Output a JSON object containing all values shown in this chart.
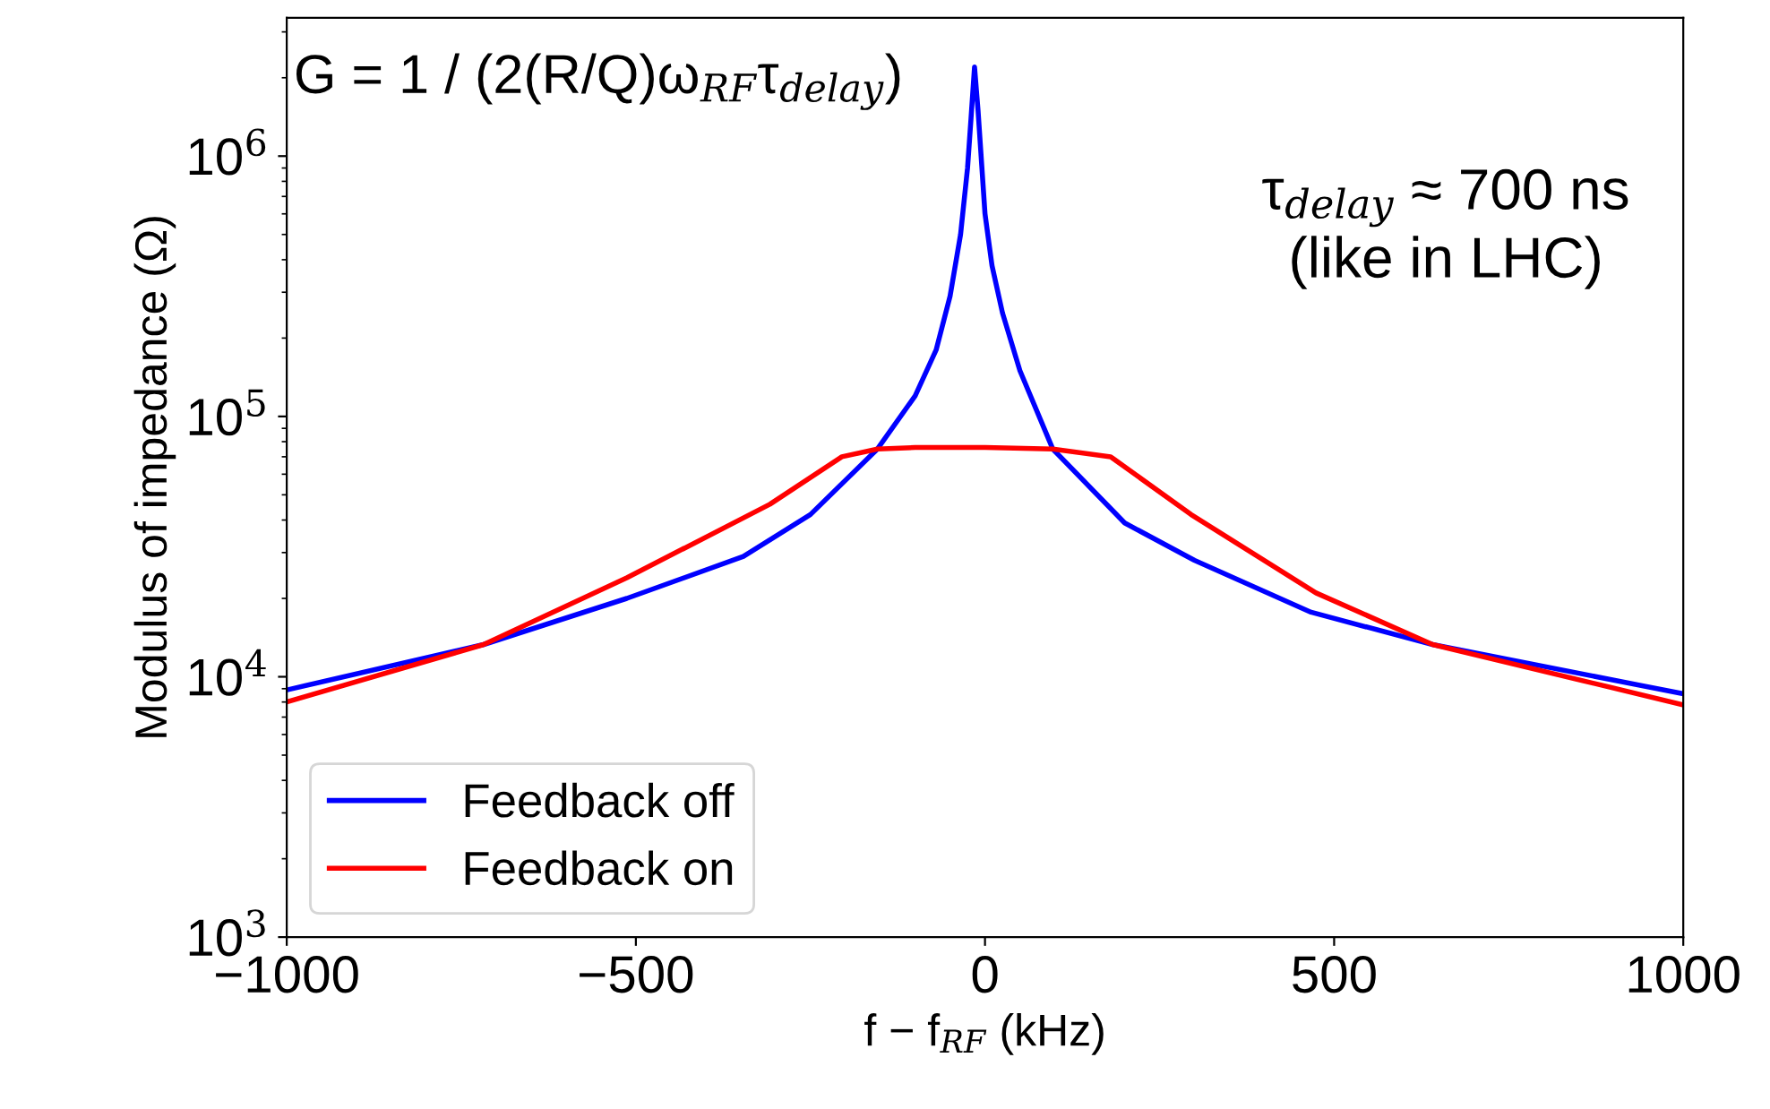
{
  "chart_data": {
    "type": "line",
    "xlabel": "f − f$_{RF}$ (kHz)",
    "ylabel": "Modulus of impedance (Ω)",
    "annotations": [
      "G = 1 / (2(R/Q)ω$_{RF}$τ$_{delay}$)",
      "τ$_{delay}$ ≈ 700 ns\n(like in LHC)"
    ],
    "series": [
      {
        "name": "Feedback off",
        "color": "#0000ff",
        "x": [
          -1000,
          -718,
          -513,
          -346,
          -250,
          -154,
          -100,
          -70,
          -50,
          -35,
          -25,
          -20,
          -15,
          -10,
          0,
          10,
          25,
          50,
          97,
          200,
          300,
          467,
          641,
          1000
        ],
        "values": [
          8900,
          13300,
          20000,
          29000,
          42000,
          75000,
          120000,
          180000,
          290000,
          500000,
          900000,
          1400000,
          2200000,
          1500000,
          600000,
          380000,
          250000,
          150000,
          75000,
          39000,
          28000,
          17700,
          13300,
          8600
        ]
      },
      {
        "name": "Feedback on",
        "color": "#ff0000",
        "x": [
          -1000,
          -718,
          -513,
          -308,
          -205,
          -154,
          -100,
          0,
          97,
          180,
          295,
          474,
          641,
          1000
        ],
        "values": [
          8000,
          13300,
          24000,
          46000,
          70000,
          75000,
          76000,
          76000,
          75000,
          70000,
          42000,
          21000,
          13300,
          7800
        ]
      }
    ],
    "log": "y",
    "xlim": [
      -1000,
      1000
    ],
    "xticks": [
      {
        "value": -1000,
        "label": "−1000"
      },
      {
        "value": -500,
        "label": "−500"
      },
      0,
      500,
      1000
    ],
    "ylim": [
      1000,
      3400000
    ],
    "yticks": [
      {
        "value": 1000,
        "label": "10$^{3}$"
      },
      {
        "value": 10000,
        "label": "10$^{4}$"
      },
      {
        "value": 100000,
        "label": "10$^{5}$"
      },
      {
        "value": 1000000,
        "label": "10$^{6}$"
      }
    ],
    "legend": "bottom left",
    "grid": false,
    "line_style": "solid",
    "marker": "none"
  }
}
